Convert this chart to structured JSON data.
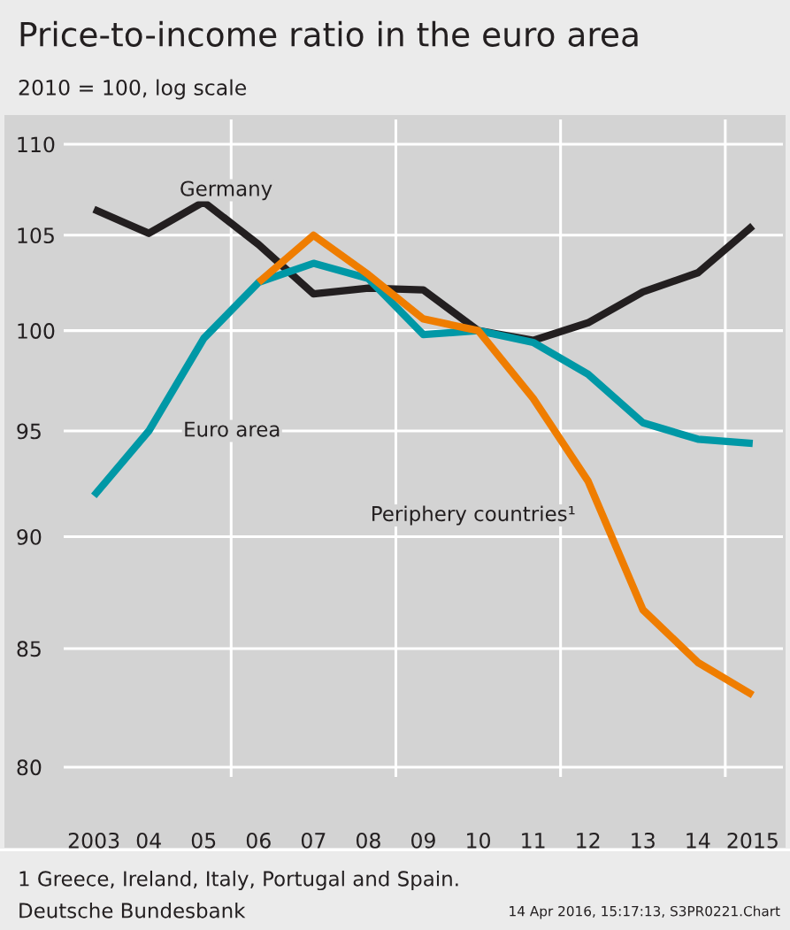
{
  "chart_data": {
    "type": "line",
    "title": "Price-to-income ratio in the euro area",
    "subtitle": "2010 = 100, log scale",
    "x": [
      2003,
      2004,
      2005,
      2006,
      2007,
      2008,
      2009,
      2010,
      2011,
      2012,
      2013,
      2014,
      2015
    ],
    "series": [
      {
        "name": "Germany",
        "color": "#231f20",
        "values": [
          106.4,
          105.1,
          106.8,
          104.5,
          101.9,
          102.2,
          102.1,
          100.0,
          99.5,
          100.4,
          102.0,
          103.0,
          105.5
        ]
      },
      {
        "name": "Euro area",
        "color": "#0098a6",
        "values": [
          91.9,
          95.0,
          99.6,
          102.5,
          103.5,
          102.7,
          99.8,
          100.0,
          99.4,
          97.8,
          95.4,
          94.6,
          94.4
        ]
      },
      {
        "name": "Periphery countries¹",
        "color": "#ef7d00",
        "values": [
          null,
          null,
          null,
          102.5,
          105.0,
          102.9,
          100.6,
          100.0,
          96.6,
          92.6,
          86.7,
          84.4,
          83.0
        ]
      }
    ],
    "log": "y",
    "ylim": [
      79.6,
      111.4
    ],
    "yticks": [
      80,
      85,
      90,
      95,
      100,
      105,
      110
    ],
    "xlim": [
      2002.45,
      2015.55
    ],
    "xticks": [
      2003,
      {
        "value": 2004,
        "label": "04"
      },
      {
        "value": 2005,
        "label": "05"
      },
      {
        "value": 2006,
        "label": "06"
      },
      {
        "value": 2007,
        "label": "07"
      },
      {
        "value": 2008,
        "label": "08"
      },
      {
        "value": 2009,
        "label": "09"
      },
      {
        "value": 2010,
        "label": "10"
      },
      {
        "value": 2011,
        "label": "11"
      },
      {
        "value": 2012,
        "label": "12"
      },
      {
        "value": 2013,
        "label": "13"
      },
      {
        "value": 2014,
        "label": "14"
      },
      2015
    ],
    "ref_lines": [
      {
        "axis": "x",
        "value": 2005.5,
        "color": "#ffffff"
      },
      {
        "axis": "x",
        "value": 2008.5,
        "color": "#ffffff"
      },
      {
        "axis": "x",
        "value": 2011.5,
        "color": "#ffffff"
      },
      {
        "axis": "x",
        "value": 2014.5,
        "color": "#ffffff"
      }
    ],
    "grid": "y",
    "legend": false,
    "marker": "none",
    "line_style": "solid",
    "annotations": [
      "1 Greece, Ireland, Italy, Portugal and Spain.",
      "Deutsche Bundesbank",
      "14 Apr 2016, 15:17:13, S3PR0221.Chart"
    ]
  }
}
